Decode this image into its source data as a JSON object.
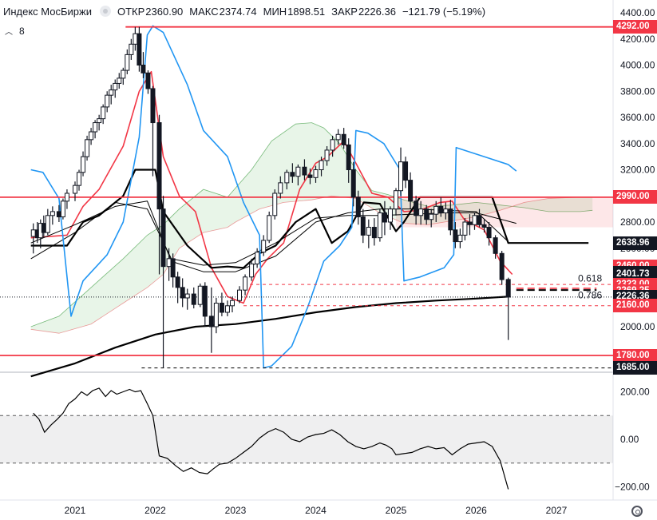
{
  "header": {
    "title": "Индекс МосБиржи",
    "open_label": "ОТКР",
    "open_value": "2360.90",
    "high_label": "МАКС",
    "high_value": "2374.74",
    "low_label": "МИН",
    "low_value": "1898.51",
    "close_label": "ЗАКР",
    "close_value": "2226.36",
    "change": "−121.79 (−5.19%)",
    "indicators_count": "8"
  },
  "colors": {
    "up": "#ffffff",
    "down": "#131722",
    "red": "#f23645",
    "blue": "#2196f3",
    "black": "#000000",
    "cloud_green": "rgba(76,175,80,0.13)",
    "cloud_red": "rgba(242,54,69,0.12)"
  },
  "chart_data": [
    {
      "type": "candlestick",
      "title": "Индекс МосБиржи",
      "x_ticks": [
        "2021",
        "2022",
        "2023",
        "2024",
        "2025",
        "2026",
        "2027"
      ],
      "y_ticks": [
        2000,
        2200,
        2400,
        2600,
        2800,
        3000,
        3200,
        3400,
        3600,
        3800,
        4000,
        4200,
        4400
      ],
      "ylim": [
        1620,
        4430
      ],
      "grid": false,
      "candles": [
        [
          2020.48,
          2690,
          2790,
          2560,
          2740
        ],
        [
          2020.53,
          2740,
          2800,
          2640,
          2680
        ],
        [
          2020.57,
          2680,
          2820,
          2600,
          2790
        ],
        [
          2020.61,
          2790,
          2850,
          2680,
          2720
        ],
        [
          2020.66,
          2720,
          2900,
          2700,
          2850
        ],
        [
          2020.72,
          2850,
          2920,
          2780,
          2880
        ],
        [
          2020.8,
          2880,
          2930,
          2800,
          2840
        ],
        [
          2020.85,
          2840,
          2980,
          2820,
          2960
        ],
        [
          2020.9,
          2960,
          3050,
          2900,
          3020
        ],
        [
          2021.0,
          3020,
          3110,
          2960,
          3080
        ],
        [
          2021.05,
          3080,
          3200,
          3040,
          3180
        ],
        [
          2021.1,
          3180,
          3340,
          3150,
          3300
        ],
        [
          2021.15,
          3300,
          3460,
          3270,
          3430
        ],
        [
          2021.2,
          3430,
          3520,
          3390,
          3490
        ],
        [
          2021.25,
          3490,
          3580,
          3440,
          3560
        ],
        [
          2021.3,
          3560,
          3620,
          3500,
          3590
        ],
        [
          2021.35,
          3590,
          3700,
          3550,
          3680
        ],
        [
          2021.4,
          3680,
          3800,
          3640,
          3770
        ],
        [
          2021.45,
          3770,
          3850,
          3700,
          3810
        ],
        [
          2021.5,
          3810,
          3890,
          3750,
          3860
        ],
        [
          2021.55,
          3860,
          3940,
          3820,
          3900
        ],
        [
          2021.6,
          3900,
          3980,
          3850,
          3960
        ],
        [
          2021.65,
          3960,
          4120,
          3930,
          4080
        ],
        [
          2021.7,
          4080,
          4200,
          4040,
          4160
        ],
        [
          2021.75,
          4160,
          4292,
          4110,
          4240
        ],
        [
          2021.8,
          4240,
          4292,
          3950,
          4000
        ],
        [
          2021.85,
          4000,
          4100,
          3900,
          3940
        ],
        [
          2021.91,
          3940,
          3960,
          3780,
          3820
        ],
        [
          2021.97,
          3820,
          3840,
          3150,
          3560
        ],
        [
          2022.05,
          3560,
          3620,
          2400,
          2900
        ],
        [
          2022.1,
          2900,
          3000,
          1685,
          2460
        ],
        [
          2022.17,
          2460,
          2600,
          2350,
          2520
        ],
        [
          2022.22,
          2520,
          2560,
          2300,
          2380
        ],
        [
          2022.28,
          2380,
          2420,
          2180,
          2300
        ],
        [
          2022.34,
          2300,
          2370,
          2150,
          2220
        ],
        [
          2022.4,
          2220,
          2290,
          2130,
          2250
        ],
        [
          2022.48,
          2250,
          2300,
          2140,
          2170
        ],
        [
          2022.56,
          2170,
          2330,
          2150,
          2310
        ],
        [
          2022.62,
          2310,
          2340,
          2000,
          2080
        ],
        [
          2022.7,
          2080,
          2300,
          1800,
          2000
        ],
        [
          2022.76,
          2000,
          2220,
          1950,
          2180
        ],
        [
          2022.83,
          2180,
          2260,
          2080,
          2110
        ],
        [
          2022.9,
          2110,
          2200,
          2080,
          2160
        ],
        [
          2022.96,
          2160,
          2230,
          2110,
          2200
        ],
        [
          2023.05,
          2200,
          2310,
          2180,
          2280
        ],
        [
          2023.12,
          2280,
          2400,
          2240,
          2380
        ],
        [
          2023.2,
          2380,
          2520,
          2350,
          2480
        ],
        [
          2023.27,
          2480,
          2600,
          2450,
          2570
        ],
        [
          2023.35,
          2570,
          2700,
          2540,
          2660
        ],
        [
          2023.42,
          2660,
          2880,
          2640,
          2850
        ],
        [
          2023.49,
          2850,
          3050,
          2820,
          3020
        ],
        [
          2023.56,
          3020,
          3150,
          2980,
          3100
        ],
        [
          2023.64,
          3100,
          3200,
          3050,
          3180
        ],
        [
          2023.71,
          3180,
          3250,
          3100,
          3150
        ],
        [
          2023.78,
          3150,
          3240,
          3080,
          3220
        ],
        [
          2023.86,
          3220,
          3280,
          3120,
          3160
        ],
        [
          2023.93,
          3160,
          3210,
          3090,
          3140
        ],
        [
          2024.0,
          3140,
          3230,
          3100,
          3200
        ],
        [
          2024.07,
          3200,
          3300,
          3150,
          3270
        ],
        [
          2024.14,
          3270,
          3380,
          3230,
          3350
        ],
        [
          2024.21,
          3350,
          3460,
          3300,
          3430
        ],
        [
          2024.28,
          3430,
          3510,
          3390,
          3470
        ],
        [
          2024.35,
          3470,
          3520,
          3360,
          3390
        ],
        [
          2024.41,
          3390,
          3440,
          3100,
          3200
        ],
        [
          2024.47,
          3200,
          3260,
          2920,
          2990
        ],
        [
          2024.53,
          2990,
          3040,
          2780,
          2840
        ],
        [
          2024.59,
          2840,
          2900,
          2640,
          2700
        ],
        [
          2024.66,
          2700,
          2820,
          2600,
          2760
        ],
        [
          2024.73,
          2760,
          2830,
          2620,
          2680
        ],
        [
          2024.8,
          2680,
          2900,
          2650,
          2870
        ],
        [
          2024.86,
          2870,
          2960,
          2700,
          2800
        ],
        [
          2024.93,
          2800,
          2920,
          2740,
          2900
        ],
        [
          2025.0,
          2900,
          3060,
          2850,
          3040
        ],
        [
          2025.06,
          3040,
          3370,
          3000,
          3260
        ],
        [
          2025.12,
          3260,
          3300,
          3060,
          3120
        ],
        [
          2025.18,
          3120,
          3180,
          2900,
          2960
        ],
        [
          2025.25,
          2960,
          3000,
          2780,
          2850
        ],
        [
          2025.31,
          2850,
          2960,
          2780,
          2900
        ],
        [
          2025.38,
          2900,
          2930,
          2780,
          2820
        ],
        [
          2025.44,
          2820,
          2900,
          2760,
          2860
        ],
        [
          2025.5,
          2860,
          2960,
          2800,
          2920
        ],
        [
          2025.56,
          2920,
          2990,
          2840,
          2870
        ],
        [
          2025.62,
          2870,
          2950,
          2820,
          2900
        ],
        [
          2025.68,
          2900,
          2970,
          2700,
          2740
        ],
        [
          2025.74,
          2740,
          2800,
          2600,
          2650
        ],
        [
          2025.8,
          2650,
          2750,
          2600,
          2700
        ],
        [
          2025.86,
          2700,
          2830,
          2660,
          2800
        ],
        [
          2025.92,
          2800,
          2860,
          2700,
          2780
        ],
        [
          2025.98,
          2780,
          2870,
          2740,
          2850
        ],
        [
          2026.04,
          2850,
          2900,
          2760,
          2780
        ],
        [
          2026.1,
          2780,
          2820,
          2720,
          2760
        ],
        [
          2026.16,
          2760,
          2800,
          2620,
          2680
        ],
        [
          2026.24,
          2680,
          2700,
          2520,
          2560
        ],
        [
          2026.32,
          2560,
          2580,
          2320,
          2360
        ],
        [
          2026.4,
          2360.9,
          2374.74,
          1898.51,
          2226.36
        ]
      ],
      "horizontal_levels": [
        {
          "value": 4292.0,
          "style": "solid",
          "color": "red"
        },
        {
          "value": 2990.0,
          "style": "solid",
          "color": "red"
        },
        {
          "value": 1780.0,
          "style": "solid",
          "color": "red"
        },
        {
          "value": 2323.0,
          "style": "dashed",
          "color": "red"
        },
        {
          "value": 2160.0,
          "style": "dashed",
          "color": "red"
        },
        {
          "value": 1685.0,
          "style": "dashed",
          "color": "black"
        }
      ],
      "fib_labels": [
        {
          "label": "0.618",
          "value": 2369
        },
        {
          "label": "0.786",
          "value": 2240
        }
      ],
      "price_tags": [
        {
          "value": 4292.0,
          "label": "4292.00",
          "bg": "#f23645",
          "fg": "#ffffff"
        },
        {
          "value": 2990.0,
          "label": "2990.00",
          "bg": "#f23645",
          "fg": "#ffffff"
        },
        {
          "value": 2638.96,
          "label": "2638.96",
          "bg": "#131722",
          "fg": "#ffffff"
        },
        {
          "value": 2460.0,
          "label": "2460.00",
          "bg": "#f23645",
          "fg": "#ffffff"
        },
        {
          "value": 2410.97,
          "label": "2410.97",
          "bg": "#131722",
          "fg": "#ffffff"
        },
        {
          "value": 2401.73,
          "label": "2401.73",
          "bg": "#131722",
          "fg": "#ffffff"
        },
        {
          "value": 2323.0,
          "label": "2323.00",
          "bg": "#f23645",
          "fg": "#ffffff"
        },
        {
          "value": 2269.25,
          "label": "2269.25",
          "bg": "#f23645",
          "fg": "#ffffff"
        },
        {
          "value": 2226.36,
          "label": "2226.36",
          "bg": "#131722",
          "fg": "#ffffff"
        },
        {
          "value": 2160.0,
          "label": "2160.00",
          "bg": "#f23645",
          "fg": "#ffffff"
        },
        {
          "value": 1780.0,
          "label": "1780.00",
          "bg": "#f23645",
          "fg": "#ffffff"
        },
        {
          "value": 1685.0,
          "label": "1685.00",
          "bg": "#131722",
          "fg": "#ffffff"
        }
      ]
    },
    {
      "type": "line",
      "y_ticks": [
        200,
        0,
        -200
      ],
      "y_tick_labels": [
        "200.00",
        "0.00",
        "−200.00"
      ],
      "ylim": [
        -245,
        245
      ],
      "levels": [
        100,
        -100
      ],
      "series": [
        {
          "x": [
            2020.48,
            2020.55,
            2020.62,
            2020.7,
            2020.78,
            2020.85,
            2020.92,
            2021.0,
            2021.08,
            2021.15,
            2021.22,
            2021.3,
            2021.38,
            2021.45,
            2021.52,
            2021.6,
            2021.68,
            2021.75,
            2021.82,
            2021.9,
            2021.97,
            2022.05,
            2022.15,
            2022.25,
            2022.35,
            2022.45,
            2022.55,
            2022.65,
            2022.72,
            2022.8,
            2022.9,
            2023.0,
            2023.1,
            2023.2,
            2023.3,
            2023.4,
            2023.5,
            2023.6,
            2023.7,
            2023.8,
            2023.9,
            2024.0,
            2024.1,
            2024.2,
            2024.3,
            2024.4,
            2024.5,
            2024.6,
            2024.7,
            2024.8,
            2024.88,
            2024.95,
            2025.0,
            2025.1,
            2025.2,
            2025.3,
            2025.4,
            2025.5,
            2025.6,
            2025.7,
            2025.8,
            2025.9,
            2026.0,
            2026.1,
            2026.2,
            2026.3,
            2026.4
          ],
          "values": [
            110,
            85,
            30,
            60,
            85,
            110,
            150,
            170,
            200,
            185,
            205,
            215,
            180,
            205,
            190,
            200,
            210,
            200,
            205,
            150,
            100,
            -70,
            -80,
            -110,
            -135,
            -120,
            -140,
            -145,
            -125,
            -105,
            -100,
            -80,
            -55,
            -30,
            5,
            30,
            45,
            30,
            0,
            -10,
            10,
            20,
            25,
            40,
            20,
            -10,
            -30,
            -40,
            -30,
            -15,
            -25,
            -40,
            -65,
            -60,
            -55,
            -40,
            -30,
            -40,
            -35,
            -65,
            -40,
            -20,
            -15,
            -10,
            -30,
            -90,
            -210
          ]
        }
      ]
    }
  ]
}
